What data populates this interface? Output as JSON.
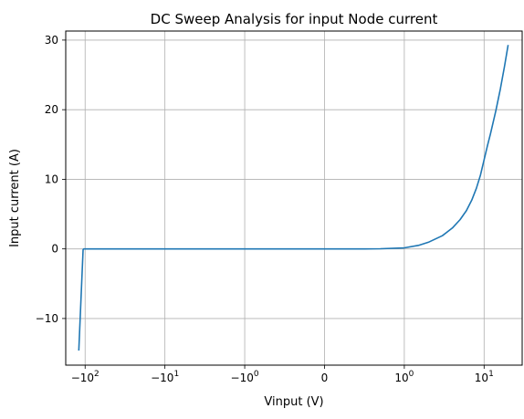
{
  "chart_data": {
    "type": "line",
    "title": "DC Sweep Analysis for input Node current",
    "xlabel": "Vinput (V)",
    "ylabel": "Input current (A)",
    "xscale": "symlog",
    "x_ticks": [
      {
        "value": -100,
        "base": "−10",
        "exp": "2"
      },
      {
        "value": -10,
        "base": "−10",
        "exp": "1"
      },
      {
        "value": -1,
        "base": "−10",
        "exp": "0"
      },
      {
        "value": 0,
        "base": "0",
        "exp": ""
      },
      {
        "value": 1,
        "base": "10",
        "exp": "0"
      },
      {
        "value": 10,
        "base": "10",
        "exp": "1"
      }
    ],
    "y_ticks": [
      {
        "value": -10,
        "label": "−10"
      },
      {
        "value": 0,
        "label": "0"
      },
      {
        "value": 10,
        "label": "10"
      },
      {
        "value": 20,
        "label": "20"
      },
      {
        "value": 30,
        "label": "30"
      }
    ],
    "xlim": [
      -175,
      30
    ],
    "ylim": [
      -16.7,
      31.3
    ],
    "grid": true,
    "line_color": "#1f77b4",
    "series": [
      {
        "x": [
          -120,
          -106,
          -104,
          -100,
          -50,
          -10,
          -5,
          -1,
          -0.5,
          0,
          0.2,
          0.5,
          0.7,
          1,
          1.5,
          2,
          3,
          4,
          5,
          6,
          7,
          8,
          9,
          10,
          11,
          12,
          14,
          16,
          18,
          20
        ],
        "y": [
          -14.6,
          -0.1,
          0,
          0,
          0,
          0,
          0,
          0,
          0,
          0,
          0,
          0,
          0.02,
          0.15,
          0.5,
          0.95,
          1.9,
          3.0,
          4.2,
          5.5,
          7.0,
          8.7,
          10.6,
          12.8,
          14.8,
          16.5,
          19.8,
          23.0,
          26.2,
          29.3
        ]
      }
    ]
  }
}
